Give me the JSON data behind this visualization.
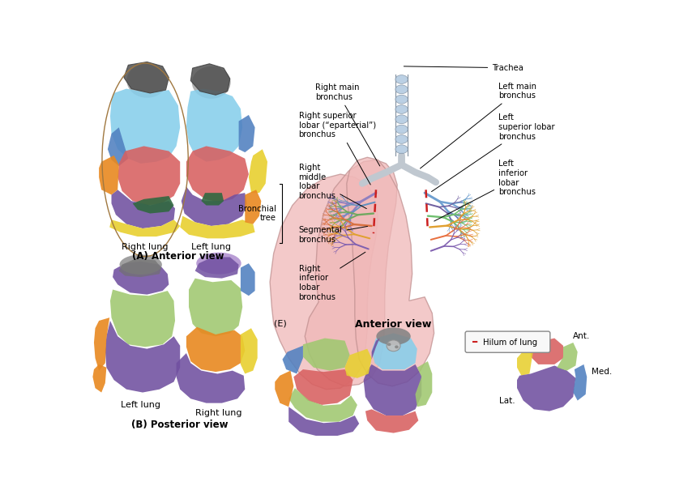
{
  "background_color": "#ffffff",
  "fig_width": 8.49,
  "fig_height": 6.05,
  "labels": {
    "A_title": "(A) Anterior view",
    "B_title": "(B) Posterior view",
    "E_label": "(E)",
    "E_title": "Anterior view",
    "right_lung_A": "Right lung",
    "left_lung_A": "Left lung",
    "left_lung_B": "Left lung",
    "right_lung_B": "Right lung",
    "trachea": "Trachea",
    "right_main_bronchus": "Right main\nbronchus",
    "right_sup_lobar": "Right superior\nlobar (“eparterial”)\nbronchus",
    "right_mid_lobar": "Right\nmiddle\nlobar\nbronchus",
    "bronchial_tree": "Bronchial\ntree",
    "segmental_bronchus": "Segmental\nbronchus",
    "right_inf_lobar": "Right\ninferior\nlobar\nbronchus",
    "left_main_bronchus": "Left main\nbronchus",
    "left_sup_lobar": "Left\nsuperior lobar\nbronchus",
    "left_inf_lobar": "Left\ninferior\nlobar\nbronchus",
    "hilum_legend": "Hilum of lung",
    "ant": "Ant.",
    "med": "Med.",
    "lat": "Lat."
  },
  "colors": {
    "lung_pink": "#f0b8b8",
    "light_blue": "#87ceeb",
    "blue_seg": "#5080c0",
    "red_seg": "#d86060",
    "orange_seg": "#e88820",
    "yellow_seg": "#e8d030",
    "purple_seg": "#7050a0",
    "light_purple": "#b090d0",
    "green_seg": "#509040",
    "dark_green": "#306840",
    "gray_tip": "#808080",
    "gray_dark": "#505050",
    "trachea_blue": "#b0c8e0",
    "trachea_gray": "#c0c8d0",
    "hilum_red": "#cc2020",
    "box_bg": "#f8f8f8",
    "light_green": "#a0c870"
  }
}
